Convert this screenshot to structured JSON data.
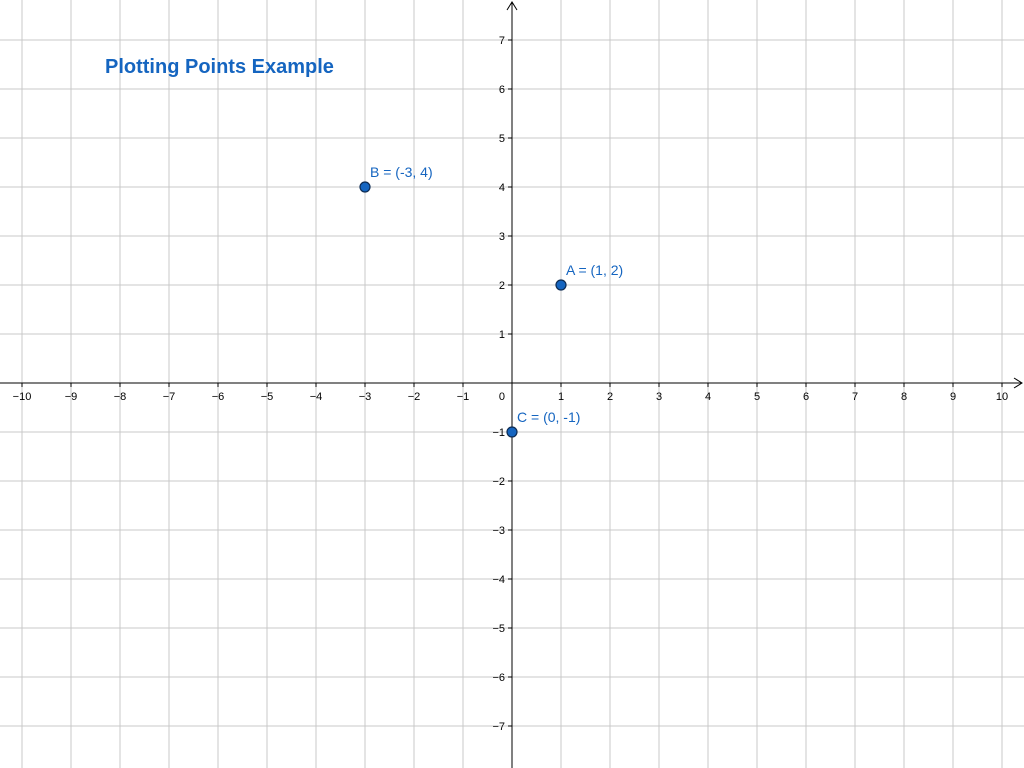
{
  "chart_data": {
    "type": "scatter",
    "title": "Plotting Points Example",
    "xlabel": "",
    "ylabel": "",
    "xlim": [
      -10.5,
      10.5
    ],
    "ylim": [
      -7.8,
      7.8
    ],
    "x_ticks": [
      -10,
      -9,
      -8,
      -7,
      -6,
      -5,
      -4,
      -3,
      -2,
      -1,
      1,
      2,
      3,
      4,
      5,
      6,
      7,
      8,
      9,
      10
    ],
    "y_ticks": [
      -7,
      -6,
      -5,
      -4,
      -3,
      -2,
      -1,
      1,
      2,
      3,
      4,
      5,
      6,
      7
    ],
    "origin_label": "0",
    "grid": true,
    "points": [
      {
        "x": 1,
        "y": 2,
        "label": "A = (1, 2)"
      },
      {
        "x": -3,
        "y": 4,
        "label": "B = (-3, 4)"
      },
      {
        "x": 0,
        "y": -1,
        "label": "C = (0, -1)"
      }
    ]
  },
  "colors": {
    "point_fill": "#1565c0",
    "point_label": "#1565c0",
    "title": "#1565c0",
    "grid": "#c8c8c8",
    "axis": "#000000"
  }
}
